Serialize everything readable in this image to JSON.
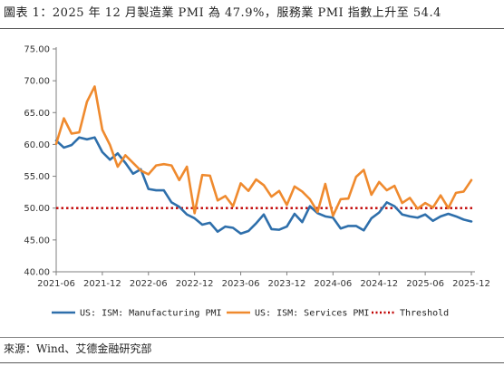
{
  "header": {
    "title": "圖表 1：2025 年 12 月製造業 PMI 為 47.9%，服務業 PMI 指數上升至 54.4"
  },
  "footer": {
    "source": "來源：Wind、艾德金融研究部"
  },
  "colors": {
    "manufacturing": "#2e6fab",
    "services": "#ef8a2e",
    "threshold": "#c00000"
  },
  "chart_data": {
    "type": "line",
    "x_ticks": [
      "2021-06",
      "2021-12",
      "2022-06",
      "2022-12",
      "2023-06",
      "2023-12",
      "2024-06",
      "2024-12",
      "2025-06",
      "2025-12"
    ],
    "y_ticks": [
      "40.00",
      "45.00",
      "50.00",
      "55.00",
      "60.00",
      "65.00",
      "70.00",
      "75.00"
    ],
    "ylim": [
      40,
      75
    ],
    "grid": false,
    "legend_position": "bottom",
    "x": [
      "2021-06",
      "2021-07",
      "2021-08",
      "2021-09",
      "2021-10",
      "2021-11",
      "2021-12",
      "2022-01",
      "2022-02",
      "2022-03",
      "2022-04",
      "2022-05",
      "2022-06",
      "2022-07",
      "2022-08",
      "2022-09",
      "2022-10",
      "2022-11",
      "2022-12",
      "2023-01",
      "2023-02",
      "2023-03",
      "2023-04",
      "2023-05",
      "2023-06",
      "2023-07",
      "2023-08",
      "2023-09",
      "2023-10",
      "2023-11",
      "2023-12",
      "2024-01",
      "2024-02",
      "2024-03",
      "2024-04",
      "2024-05",
      "2024-06",
      "2024-07",
      "2024-08",
      "2024-09",
      "2024-10",
      "2024-11",
      "2024-12",
      "2025-01",
      "2025-02",
      "2025-03",
      "2025-04",
      "2025-05",
      "2025-06",
      "2025-07",
      "2025-08",
      "2025-09",
      "2025-10",
      "2025-11",
      "2025-12"
    ],
    "series": [
      {
        "name": "US: ISM: Manufacturing PMI",
        "values": [
          60.6,
          59.5,
          59.9,
          61.1,
          60.8,
          61.1,
          58.8,
          57.6,
          58.6,
          57.1,
          55.4,
          56.1,
          53.0,
          52.8,
          52.8,
          50.9,
          50.2,
          49.0,
          48.4,
          47.4,
          47.7,
          46.3,
          47.1,
          46.9,
          46.0,
          46.4,
          47.6,
          49.0,
          46.7,
          46.6,
          47.1,
          49.1,
          47.8,
          50.3,
          49.2,
          48.7,
          48.5,
          46.8,
          47.2,
          47.2,
          46.5,
          48.4,
          49.3,
          50.9,
          50.3,
          49.0,
          48.7,
          48.5,
          49.0,
          48.0,
          48.7,
          49.1,
          48.7,
          48.2,
          47.9
        ]
      },
      {
        "name": "US: ISM: Services PMI",
        "values": [
          60.1,
          64.1,
          61.7,
          61.9,
          66.7,
          69.1,
          62.3,
          59.9,
          56.5,
          58.3,
          57.1,
          55.9,
          55.3,
          56.7,
          56.9,
          56.7,
          54.4,
          56.5,
          49.2,
          55.2,
          55.1,
          51.2,
          51.9,
          50.3,
          53.9,
          52.7,
          54.5,
          53.6,
          51.8,
          52.7,
          50.5,
          53.4,
          52.6,
          51.4,
          49.4,
          53.8,
          48.8,
          51.4,
          51.5,
          54.9,
          56.0,
          52.1,
          54.1,
          52.8,
          53.5,
          50.8,
          51.6,
          49.9,
          50.8,
          50.1,
          52.0,
          50.0,
          52.4,
          52.6,
          54.4
        ]
      },
      {
        "name": "Threshold",
        "value": 50
      }
    ]
  },
  "legend": [
    "US: ISM: Manufacturing PMI",
    "US: ISM: Services PMI",
    "Threshold"
  ]
}
